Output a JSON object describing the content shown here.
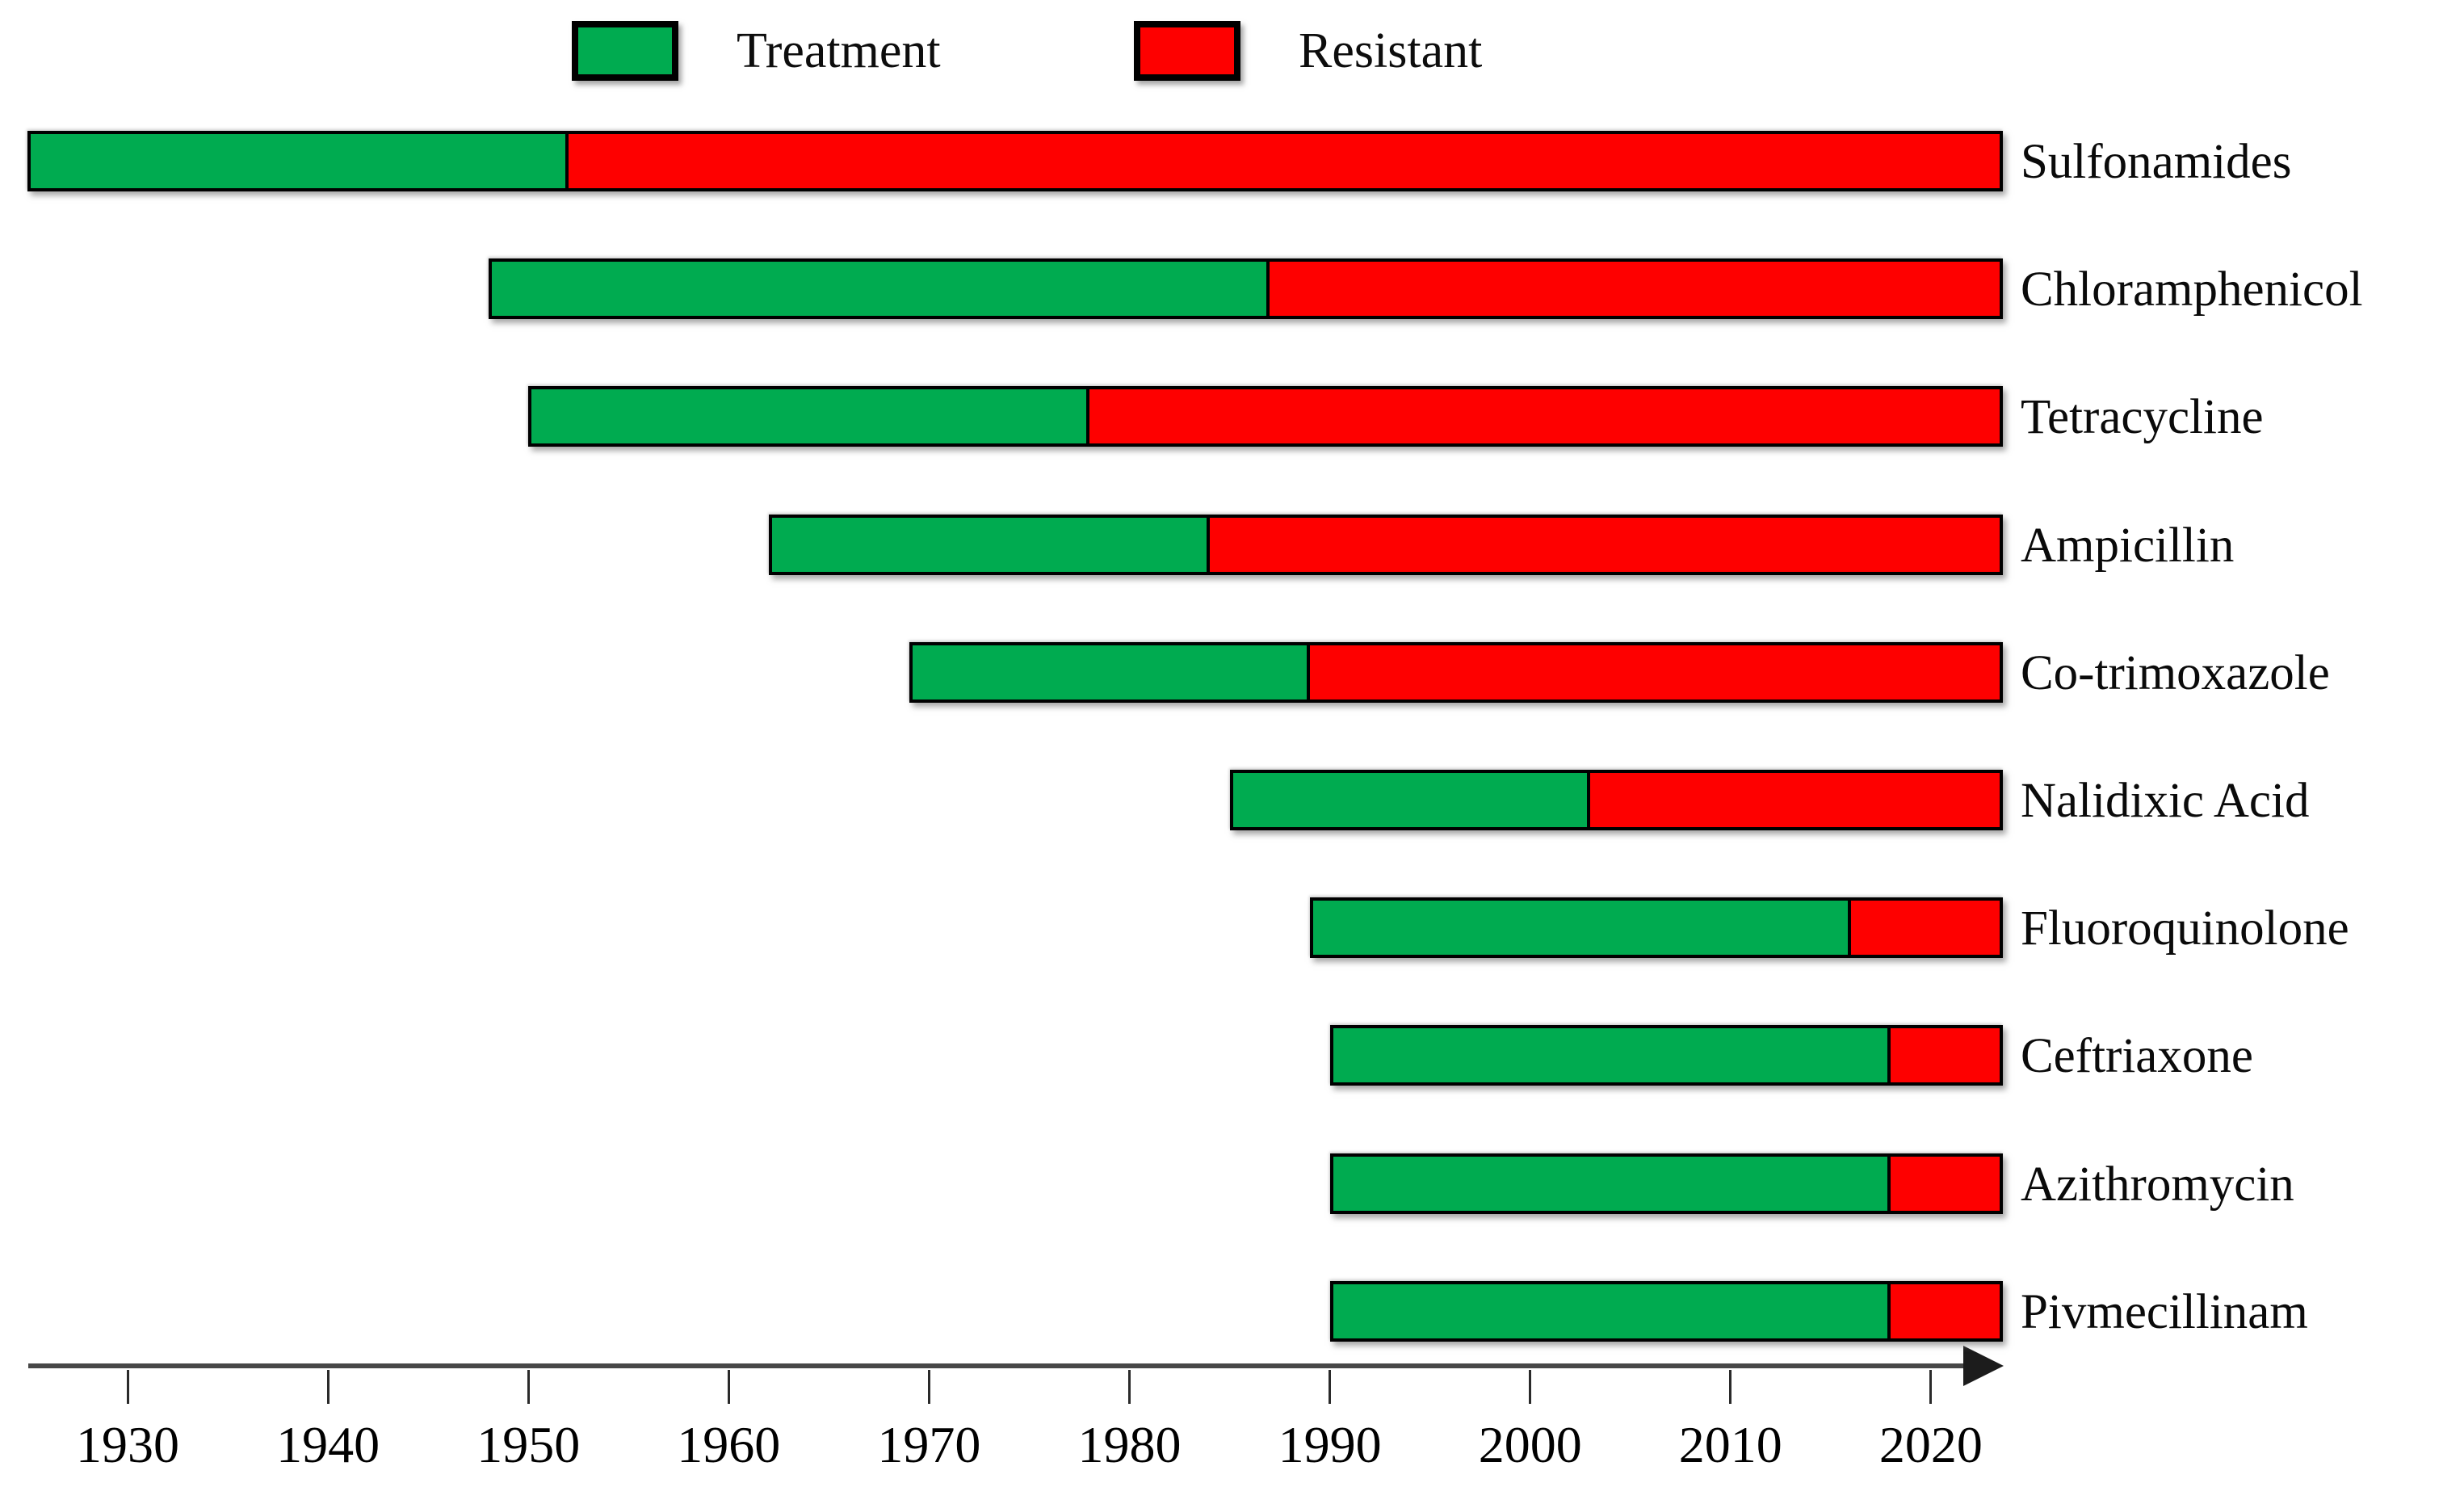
{
  "figure": {
    "background": "#ffffff"
  },
  "legend": {
    "items": [
      {
        "label": "Treatment",
        "color": "#00AB50"
      },
      {
        "label": "Resistant",
        "color": "#FE0000"
      }
    ]
  },
  "chart_data": {
    "type": "bar",
    "subtype": "horizontal-stacked-timeline",
    "title": "",
    "legend": [
      "Treatment",
      "Resistant"
    ],
    "legend_position": "top",
    "orientation": "horizontal",
    "grid": false,
    "colors": {
      "treatment": "#00AB50",
      "resistant": "#FE0000",
      "bar_border": "#000000",
      "axis": "#474747"
    },
    "xlim": [
      1924,
      2024
    ],
    "x_ticks": [
      1930,
      1940,
      1950,
      1960,
      1970,
      1980,
      1990,
      2000,
      2010,
      2020
    ],
    "categories": [
      "Sulfonamides",
      "Chloramphenicol",
      "Tetracycline",
      "Ampicillin",
      "Co-trimoxazole",
      "Nalidixic Acid",
      "Fluoroquinolone",
      "Ceftriaxone",
      "Azithromycin",
      "Pivmecillinam"
    ],
    "rows": [
      {
        "label": "Sulfonamides",
        "treatment_start": 1925,
        "resistance_start": 1952,
        "end": 2023
      },
      {
        "label": "Chloramphenicol",
        "treatment_start": 1948,
        "resistance_start": 1987,
        "end": 2023
      },
      {
        "label": "Tetracycline",
        "treatment_start": 1950,
        "resistance_start": 1978,
        "end": 2023
      },
      {
        "label": "Ampicillin",
        "treatment_start": 1962,
        "resistance_start": 1984,
        "end": 2023
      },
      {
        "label": "Co-trimoxazole",
        "treatment_start": 1969,
        "resistance_start": 1989,
        "end": 2023
      },
      {
        "label": "Nalidixic Acid",
        "treatment_start": 1985,
        "resistance_start": 2003,
        "end": 2023
      },
      {
        "label": "Fluoroquinolone",
        "treatment_start": 1989,
        "resistance_start": 2016,
        "end": 2023
      },
      {
        "label": "Ceftriaxone",
        "treatment_start": 1990,
        "resistance_start": 2018,
        "end": 2023
      },
      {
        "label": "Azithromycin",
        "treatment_start": 1990,
        "resistance_start": 2018,
        "end": 2023
      },
      {
        "label": "Pivmecillinam",
        "treatment_start": 1990,
        "resistance_start": 2018,
        "end": 2023
      }
    ]
  }
}
